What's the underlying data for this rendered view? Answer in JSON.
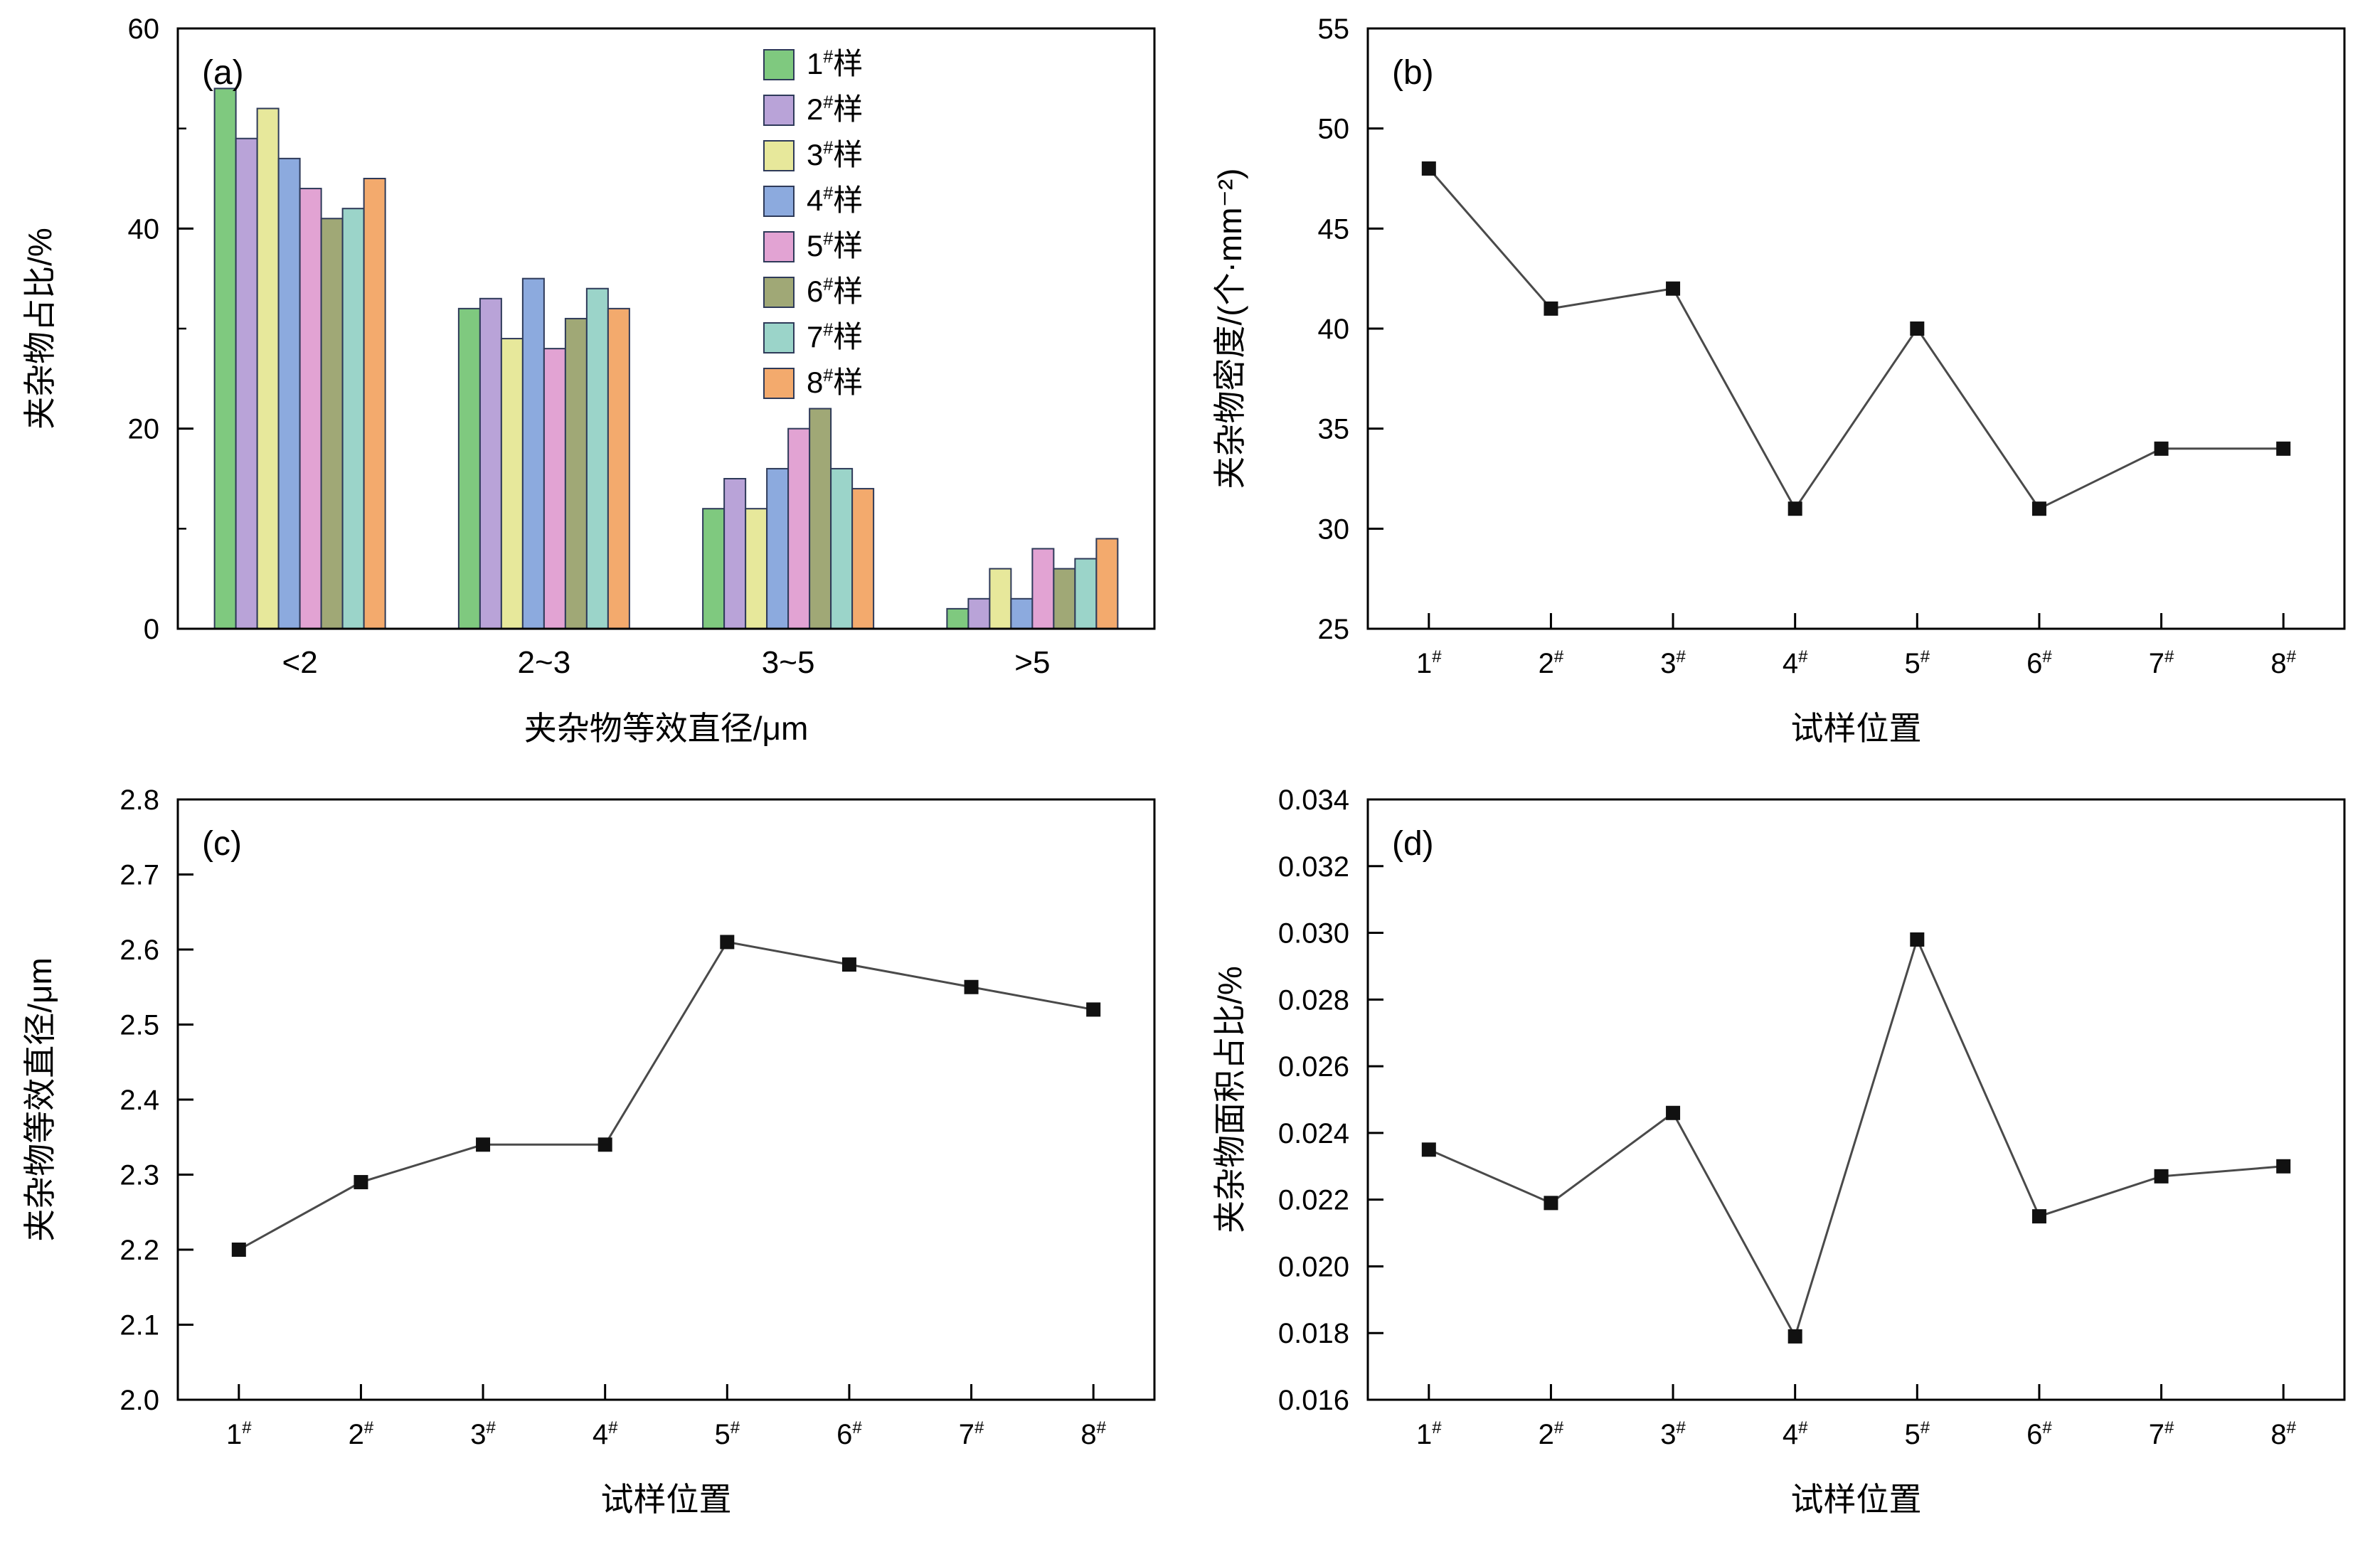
{
  "figure": {
    "background_color": "#ffffff",
    "panel_letters": [
      "(a)",
      "(b)",
      "(c)",
      "(d)"
    ]
  },
  "chart_data": [
    {
      "id": "a",
      "type": "bar",
      "panel_label": "(a)",
      "xlabel": "夹杂物等效直径/μm",
      "ylabel": "夹杂物占比/%",
      "categories": [
        "<2",
        "2~3",
        "3~5",
        ">5"
      ],
      "series": [
        {
          "name": "1#样",
          "color": "#7fc97f",
          "values": [
            54,
            32,
            12,
            2
          ]
        },
        {
          "name": "2#样",
          "color": "#b9a3d8",
          "values": [
            49,
            33,
            15,
            3
          ]
        },
        {
          "name": "3#样",
          "color": "#e7e89b",
          "values": [
            52,
            29,
            12,
            6
          ]
        },
        {
          "name": "4#样",
          "color": "#8caade",
          "values": [
            47,
            35,
            16,
            3
          ]
        },
        {
          "name": "5#样",
          "color": "#e2a3d3",
          "values": [
            44,
            28,
            20,
            8
          ]
        },
        {
          "name": "6#样",
          "color": "#a0a876",
          "values": [
            41,
            31,
            22,
            6
          ]
        },
        {
          "name": "7#样",
          "color": "#9bd4c9",
          "values": [
            42,
            34,
            16,
            7
          ]
        },
        {
          "name": "8#样",
          "color": "#f3aa6d",
          "values": [
            45,
            32,
            14,
            9
          ]
        }
      ],
      "ylim": [
        0,
        60
      ],
      "ytick_values": [
        0,
        20,
        40,
        60
      ],
      "ytick_labels": [
        "0",
        "20",
        "40",
        "60"
      ],
      "minor_tick_values": [
        10,
        30,
        50
      ],
      "bar_edge_color": "#2e3a59",
      "legend_position": "top-right",
      "grid": false
    },
    {
      "id": "b",
      "type": "line",
      "panel_label": "(b)",
      "xlabel": "试样位置",
      "ylabel": "夹杂物密度/(个·mm⁻²)",
      "x_labels": [
        "1#",
        "2#",
        "3#",
        "4#",
        "5#",
        "6#",
        "7#",
        "8#"
      ],
      "values": [
        48,
        41,
        42,
        31,
        40,
        31,
        34,
        34
      ],
      "ylim": [
        25,
        55
      ],
      "ytick_values": [
        25,
        30,
        35,
        40,
        45,
        50,
        55
      ],
      "ytick_labels": [
        "25",
        "30",
        "35",
        "40",
        "45",
        "50",
        "55"
      ],
      "marker": "square",
      "marker_color": "#111111",
      "line_color": "#4a4a4a",
      "grid": false
    },
    {
      "id": "c",
      "type": "line",
      "panel_label": "(c)",
      "xlabel": "试样位置",
      "ylabel": "夹杂物等效直径/μm",
      "x_labels": [
        "1#",
        "2#",
        "3#",
        "4#",
        "5#",
        "6#",
        "7#",
        "8#"
      ],
      "values": [
        2.2,
        2.29,
        2.34,
        2.34,
        2.61,
        2.58,
        2.55,
        2.52
      ],
      "ylim": [
        2.0,
        2.8
      ],
      "ytick_values": [
        2.0,
        2.1,
        2.2,
        2.3,
        2.4,
        2.5,
        2.6,
        2.7,
        2.8
      ],
      "ytick_labels": [
        "2.0",
        "2.1",
        "2.2",
        "2.3",
        "2.4",
        "2.5",
        "2.6",
        "2.7",
        "2.8"
      ],
      "marker": "square",
      "marker_color": "#111111",
      "line_color": "#4a4a4a",
      "grid": false
    },
    {
      "id": "d",
      "type": "line",
      "panel_label": "(d)",
      "xlabel": "试样位置",
      "ylabel": "夹杂物面积占比/%",
      "x_labels": [
        "1#",
        "2#",
        "3#",
        "4#",
        "5#",
        "6#",
        "7#",
        "8#"
      ],
      "values": [
        0.0235,
        0.0219,
        0.0246,
        0.0179,
        0.0298,
        0.0215,
        0.0227,
        0.023
      ],
      "ylim": [
        0.016,
        0.034
      ],
      "ytick_values": [
        0.016,
        0.018,
        0.02,
        0.022,
        0.024,
        0.026,
        0.028,
        0.03,
        0.032,
        0.034
      ],
      "ytick_labels": [
        "0.016",
        "0.018",
        "0.020",
        "0.022",
        "0.024",
        "0.026",
        "0.028",
        "0.030",
        "0.032",
        "0.034"
      ],
      "marker": "square",
      "marker_color": "#111111",
      "line_color": "#4a4a4a",
      "grid": false
    }
  ]
}
